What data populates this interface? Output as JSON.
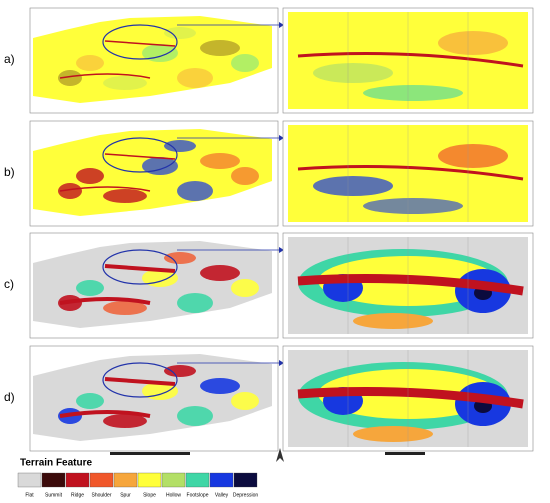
{
  "panels": [
    {
      "label": "a)"
    },
    {
      "label": "b)"
    },
    {
      "label": "c)"
    },
    {
      "label": "d)"
    }
  ],
  "legend": {
    "title": "Terrain Feature",
    "items": [
      {
        "name": "Flat",
        "color": "#d9d9d9"
      },
      {
        "name": "Summit",
        "color": "#3b0a0a"
      },
      {
        "name": "Ridge",
        "color": "#c0121f"
      },
      {
        "name": "Shoulder",
        "color": "#f0572a"
      },
      {
        "name": "Spur",
        "color": "#f6a63c"
      },
      {
        "name": "Slope",
        "color": "#ffff3a"
      },
      {
        "name": "Hollow",
        "color": "#b3df66"
      },
      {
        "name": "Footslope",
        "color": "#3fd6a6"
      },
      {
        "name": "Valley",
        "color": "#1738e0"
      },
      {
        "name": "Depression",
        "color": "#0b0b3e"
      }
    ]
  }
}
